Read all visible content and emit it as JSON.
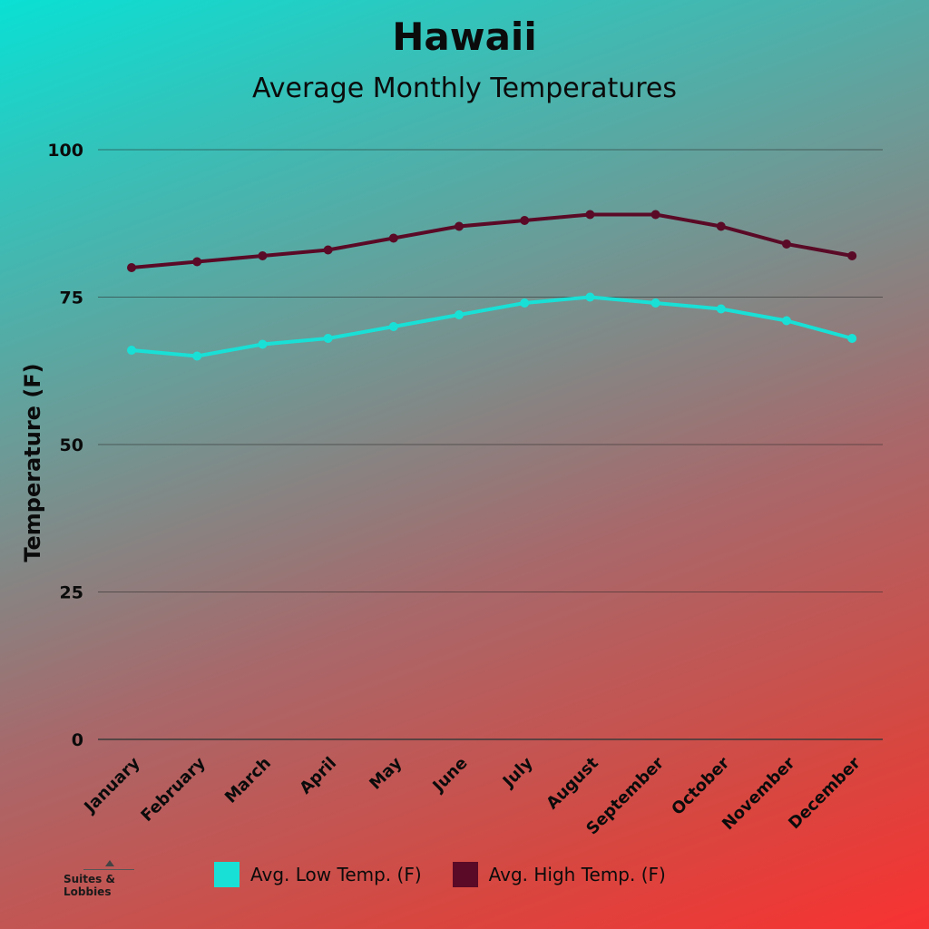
{
  "chart_data": {
    "type": "line",
    "title": "Hawaii",
    "subtitle": "Average Monthly Temperatures",
    "ylabel": "Temperature (F)",
    "xlabel": "",
    "categories": [
      "January",
      "February",
      "March",
      "April",
      "May",
      "June",
      "July",
      "August",
      "September",
      "October",
      "November",
      "December"
    ],
    "ylim": [
      0,
      100
    ],
    "yticks": [
      0,
      25,
      50,
      75,
      100
    ],
    "grid": true,
    "legend_position": "bottom",
    "series": [
      {
        "name": "Avg. Low Temp. (F)",
        "color": "#19e0d6",
        "values": [
          66,
          65,
          67,
          68,
          70,
          72,
          74,
          75,
          74,
          73,
          71,
          68
        ]
      },
      {
        "name": "Avg. High Temp. (F)",
        "color": "#5a0a26",
        "values": [
          80,
          81,
          82,
          83,
          85,
          87,
          88,
          89,
          89,
          87,
          84,
          82
        ]
      }
    ]
  },
  "brand": {
    "name": "Suites & Lobbies",
    "icon": "hotel-icon"
  }
}
